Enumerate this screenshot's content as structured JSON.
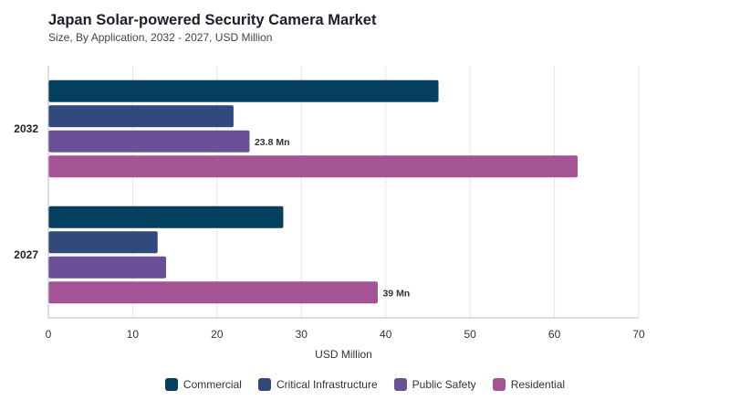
{
  "header": {
    "title": "Japan Solar-powered Security Camera Market",
    "subtitle": "Size, By Application, 2032 - 2027, USD Million"
  },
  "chart_data": {
    "type": "bar",
    "orientation": "horizontal",
    "categories": [
      "2032",
      "2027"
    ],
    "series": [
      {
        "name": "Commercial",
        "color": "#033f5e",
        "values": [
          46.2,
          27.8
        ]
      },
      {
        "name": "Critical Infrastructure",
        "color": "#32497c",
        "values": [
          21.9,
          12.9
        ]
      },
      {
        "name": "Public Safety",
        "color": "#6b4f97",
        "values": [
          23.8,
          13.9
        ]
      },
      {
        "name": "Residential",
        "color": "#a45394",
        "values": [
          62.7,
          39
        ]
      }
    ],
    "data_labels": [
      {
        "series": "Public Safety",
        "category": "2032",
        "text": "23.8 Mn"
      },
      {
        "series": "Residential",
        "category": "2027",
        "text": "39 Mn"
      }
    ],
    "xlabel": "USD Million",
    "ylabel": "",
    "xlim": [
      0,
      70
    ],
    "xticks": [
      0,
      10,
      20,
      30,
      40,
      50,
      60,
      70
    ],
    "grid": "vertical",
    "legend_position": "bottom-center"
  }
}
